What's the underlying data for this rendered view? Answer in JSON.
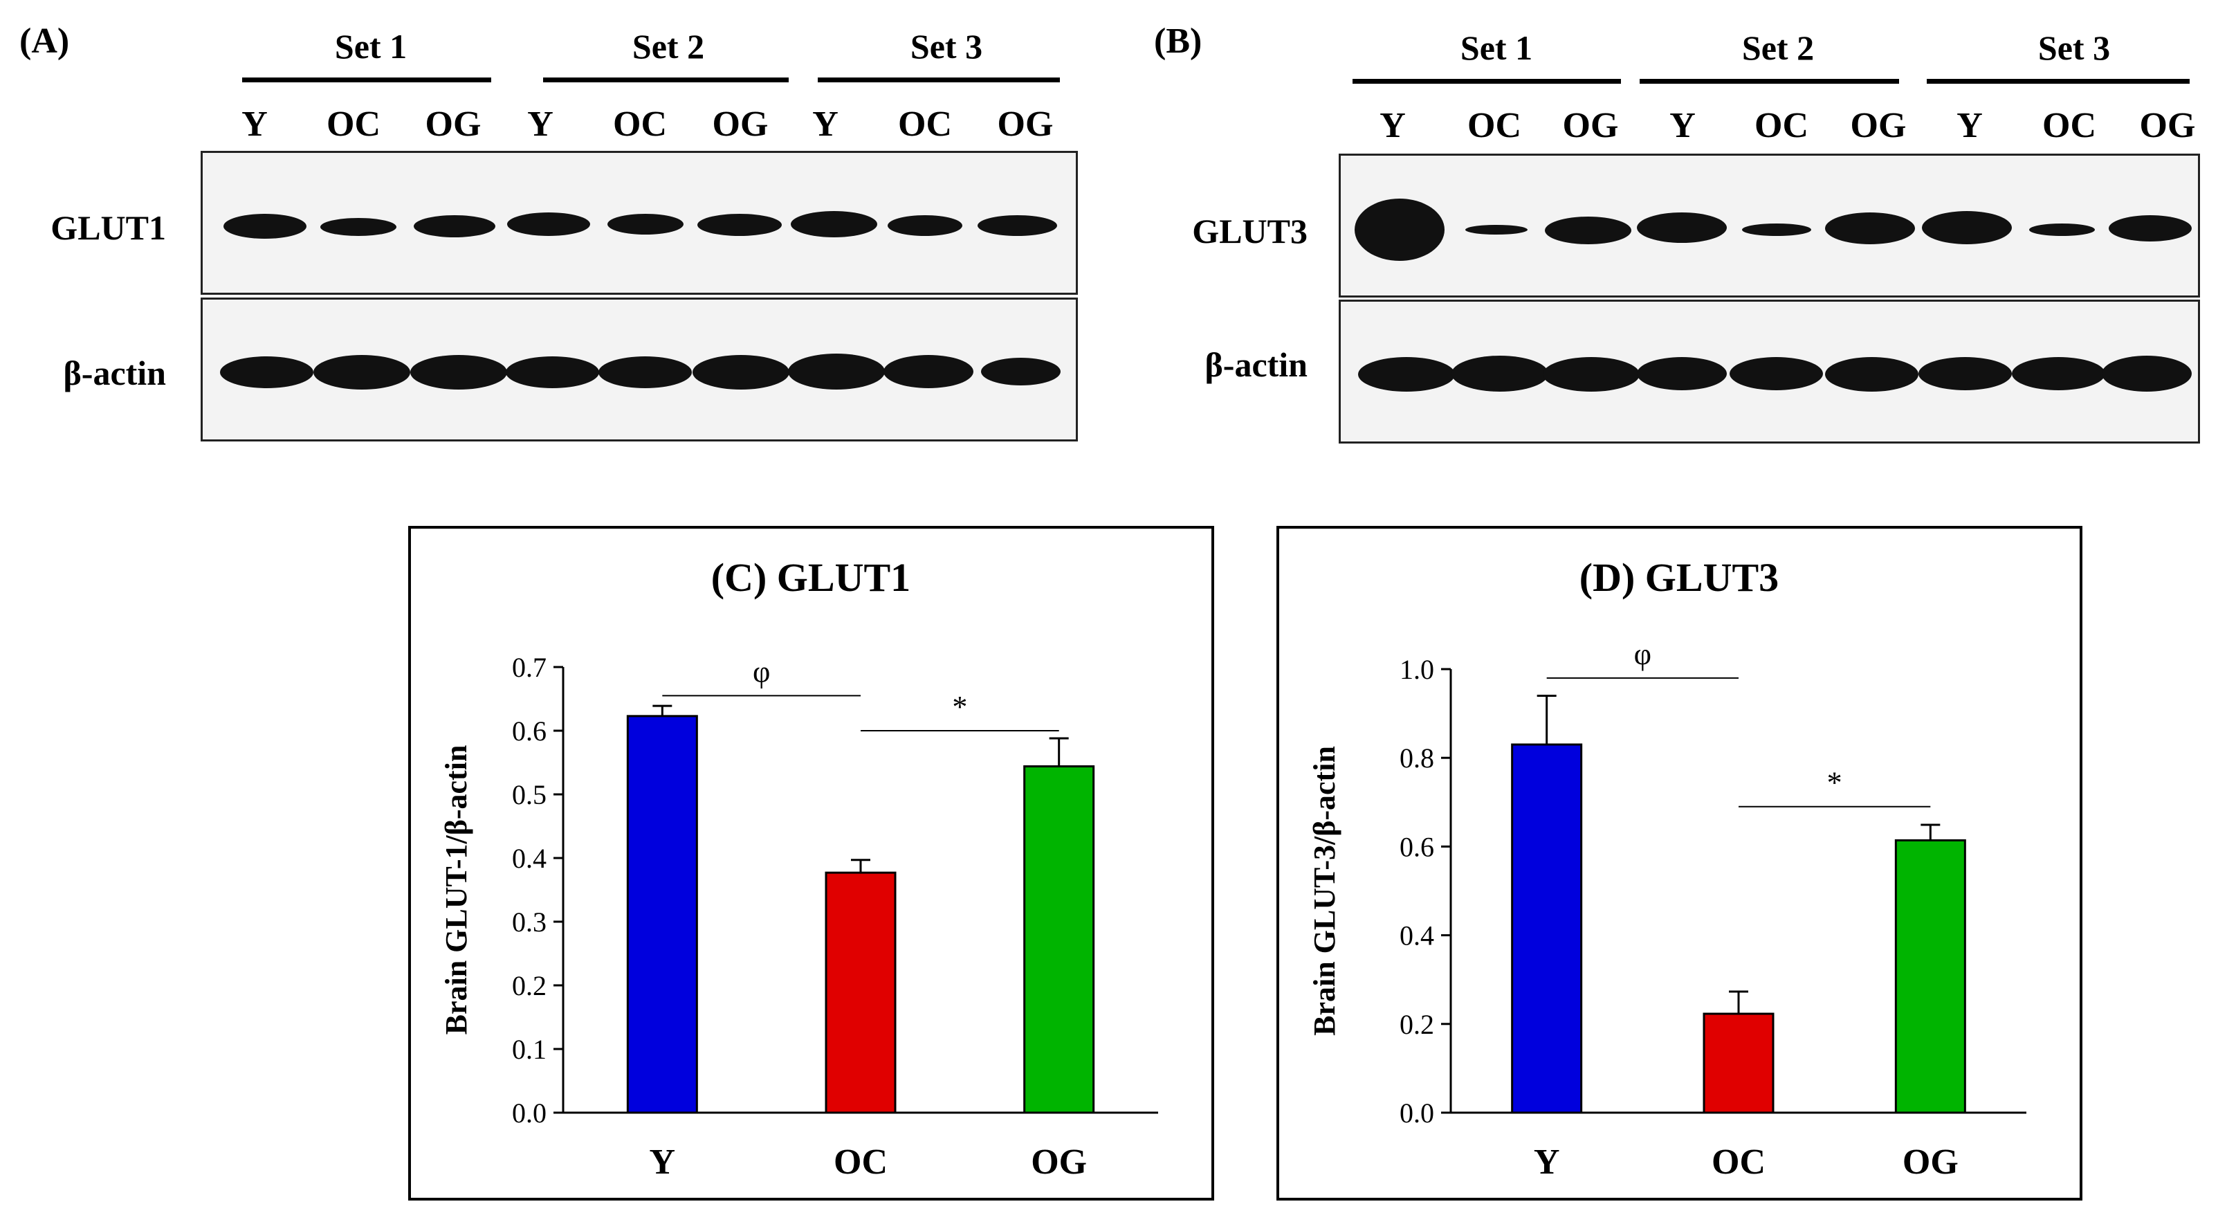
{
  "blots": {
    "A": {
      "panel_label": "(A)",
      "sets": [
        "Set 1",
        "Set 2",
        "Set 3"
      ],
      "lanes": [
        "Y",
        "OC",
        "OG",
        "Y",
        "OC",
        "OG",
        "Y",
        "OC",
        "OG"
      ],
      "rows": [
        "GLUT1",
        "β-actin"
      ]
    },
    "B": {
      "panel_label": "(B)",
      "sets": [
        "Set 1",
        "Set 2",
        "Set 3"
      ],
      "lanes": [
        "Y",
        "OC",
        "OG",
        "Y",
        "OC",
        "OG",
        "Y",
        "OC",
        "OG"
      ],
      "rows": [
        "GLUT3",
        "β-actin"
      ]
    }
  },
  "chart_data": [
    {
      "type": "bar",
      "title": "(C) GLUT1",
      "categories": [
        "Y",
        "OC",
        "OG"
      ],
      "values": [
        0.623,
        0.377,
        0.544
      ],
      "errors": [
        0.016,
        0.02,
        0.044
      ],
      "colors": [
        "#0000dd",
        "#e00000",
        "#00b400"
      ],
      "ylabel": "Brain GLUT-1/β-actin",
      "xlabel": "",
      "ylim": [
        0,
        0.7
      ],
      "yticks": [
        "0.0",
        "0.1",
        "0.2",
        "0.3",
        "0.4",
        "0.5",
        "0.6",
        "0.7"
      ],
      "annotations": [
        {
          "symbol": "φ",
          "from": "Y",
          "to": "OC",
          "y": 0.655
        },
        {
          "symbol": "*",
          "from": "OC",
          "to": "OG",
          "y": 0.6
        }
      ]
    },
    {
      "type": "bar",
      "title": "(D) GLUT3",
      "categories": [
        "Y",
        "OC",
        "OG"
      ],
      "values": [
        0.83,
        0.223,
        0.614
      ],
      "errors": [
        0.11,
        0.05,
        0.035
      ],
      "colors": [
        "#0000dd",
        "#e00000",
        "#00b400"
      ],
      "ylabel": "Brain GLUT-3/β-actin",
      "xlabel": "",
      "ylim": [
        0,
        1.0
      ],
      "yticks": [
        "0.0",
        "0.2",
        "0.4",
        "0.6",
        "0.8",
        "1.0"
      ],
      "annotations": [
        {
          "symbol": "φ",
          "from": "Y",
          "to": "OC",
          "y": 0.98
        },
        {
          "symbol": "*",
          "from": "OC",
          "to": "OG",
          "y": 0.69
        }
      ]
    }
  ]
}
